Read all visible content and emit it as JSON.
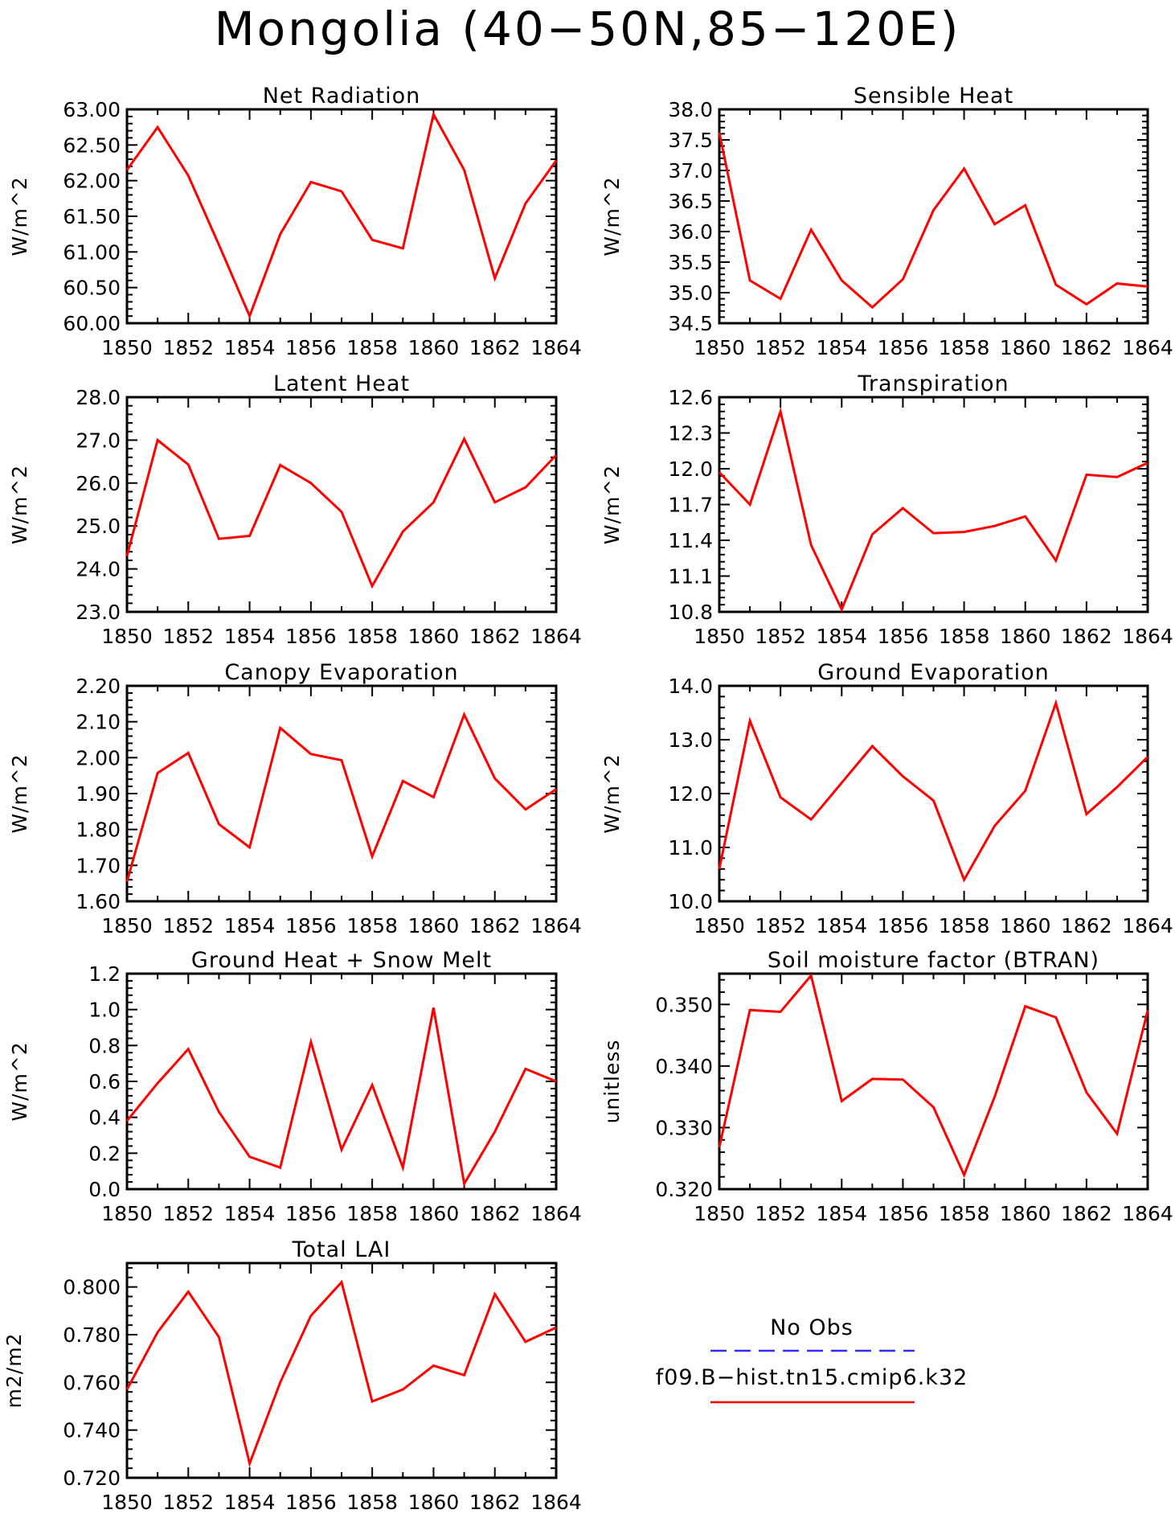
{
  "figure_title": "Mongolia (40−50N,85−120E)",
  "colors": {
    "model_line": "#ff0000",
    "obs_line": "#2d2dff",
    "axis": "#000000"
  },
  "legend": {
    "items": [
      {
        "label": "No Obs",
        "color": "#2d2dff",
        "style": "dashed"
      },
      {
        "label": "f09.B−hist.tn15.cmip6.k32",
        "color": "#ff0000",
        "style": "solid"
      }
    ]
  },
  "chart_data": [
    {
      "type": "line",
      "title": "Net Radiation",
      "ylabel": "W/m^2",
      "xlim": [
        1850,
        1864
      ],
      "ylim": [
        60.0,
        63.0
      ],
      "yticks": [
        "60.00",
        "60.50",
        "61.00",
        "61.50",
        "62.00",
        "62.50",
        "63.00"
      ],
      "xticks": [
        "1850",
        "1852",
        "1854",
        "1856",
        "1858",
        "1860",
        "1862",
        "1864"
      ],
      "x": [
        1850,
        1851,
        1852,
        1853,
        1854,
        1855,
        1856,
        1857,
        1858,
        1859,
        1860,
        1861,
        1862,
        1863,
        1864
      ],
      "series": [
        {
          "name": "f09.B−hist.tn15.cmip6.k32",
          "values": [
            62.15,
            62.75,
            62.07,
            61.1,
            60.1,
            61.25,
            61.98,
            61.85,
            61.17,
            61.05,
            62.93,
            62.15,
            60.63,
            61.68,
            62.28
          ]
        }
      ]
    },
    {
      "type": "line",
      "title": "Sensible Heat",
      "ylabel": "W/m^2",
      "xlim": [
        1850,
        1864
      ],
      "ylim": [
        34.5,
        38.0
      ],
      "yticks": [
        "34.5",
        "35.0",
        "35.5",
        "36.0",
        "36.5",
        "37.0",
        "37.5",
        "38.0"
      ],
      "xticks": [
        "1850",
        "1852",
        "1854",
        "1856",
        "1858",
        "1860",
        "1862",
        "1864"
      ],
      "x": [
        1850,
        1851,
        1852,
        1853,
        1854,
        1855,
        1856,
        1857,
        1858,
        1859,
        1860,
        1861,
        1862,
        1863,
        1864
      ],
      "series": [
        {
          "name": "f09.B−hist.tn15.cmip6.k32",
          "values": [
            37.62,
            35.2,
            34.9,
            36.03,
            35.2,
            34.76,
            35.22,
            36.35,
            37.03,
            36.12,
            36.43,
            35.13,
            34.81,
            35.15,
            35.1
          ]
        }
      ]
    },
    {
      "type": "line",
      "title": "Latent Heat",
      "ylabel": "W/m^2",
      "xlim": [
        1850,
        1864
      ],
      "ylim": [
        23.0,
        28.0
      ],
      "yticks": [
        "23.0",
        "24.0",
        "25.0",
        "26.0",
        "27.0",
        "28.0"
      ],
      "xticks": [
        "1850",
        "1852",
        "1854",
        "1856",
        "1858",
        "1860",
        "1862",
        "1864"
      ],
      "x": [
        1850,
        1851,
        1852,
        1853,
        1854,
        1855,
        1856,
        1857,
        1858,
        1859,
        1860,
        1861,
        1862,
        1863,
        1864
      ],
      "series": [
        {
          "name": "f09.B−hist.tn15.cmip6.k32",
          "values": [
            24.3,
            27.0,
            26.43,
            24.7,
            24.77,
            26.42,
            26.0,
            25.33,
            23.6,
            24.87,
            25.55,
            27.03,
            25.55,
            25.9,
            26.65
          ]
        }
      ]
    },
    {
      "type": "line",
      "title": "Transpiration",
      "ylabel": "W/m^2",
      "xlim": [
        1850,
        1864
      ],
      "ylim": [
        10.8,
        12.6
      ],
      "yticks": [
        "10.8",
        "11.1",
        "11.4",
        "11.7",
        "12.0",
        "12.3",
        "12.6"
      ],
      "xticks": [
        "1850",
        "1852",
        "1854",
        "1856",
        "1858",
        "1860",
        "1862",
        "1864"
      ],
      "x": [
        1850,
        1851,
        1852,
        1853,
        1854,
        1855,
        1856,
        1857,
        1858,
        1859,
        1860,
        1861,
        1862,
        1863,
        1864
      ],
      "series": [
        {
          "name": "f09.B−hist.tn15.cmip6.k32",
          "values": [
            11.97,
            11.7,
            12.48,
            11.36,
            10.82,
            11.45,
            11.67,
            11.46,
            11.47,
            11.52,
            11.6,
            11.23,
            11.95,
            11.93,
            12.05
          ]
        }
      ]
    },
    {
      "type": "line",
      "title": "Canopy Evaporation",
      "ylabel": "W/m^2",
      "xlim": [
        1850,
        1864
      ],
      "ylim": [
        1.6,
        2.2
      ],
      "yticks": [
        "1.60",
        "1.70",
        "1.80",
        "1.90",
        "2.00",
        "2.10",
        "2.20"
      ],
      "xticks": [
        "1850",
        "1852",
        "1854",
        "1856",
        "1858",
        "1860",
        "1862",
        "1864"
      ],
      "x": [
        1850,
        1851,
        1852,
        1853,
        1854,
        1855,
        1856,
        1857,
        1858,
        1859,
        1860,
        1861,
        1862,
        1863,
        1864
      ],
      "series": [
        {
          "name": "f09.B−hist.tn15.cmip6.k32",
          "values": [
            1.655,
            1.957,
            2.013,
            1.815,
            1.75,
            2.083,
            2.01,
            1.993,
            1.725,
            1.935,
            1.89,
            2.12,
            1.942,
            1.856,
            1.912
          ]
        }
      ]
    },
    {
      "type": "line",
      "title": "Ground Evaporation",
      "ylabel": "W/m^2",
      "xlim": [
        1850,
        1864
      ],
      "ylim": [
        10.0,
        14.0
      ],
      "yticks": [
        "10.0",
        "11.0",
        "12.0",
        "13.0",
        "14.0"
      ],
      "xticks": [
        "1850",
        "1852",
        "1854",
        "1856",
        "1858",
        "1860",
        "1862",
        "1864"
      ],
      "x": [
        1850,
        1851,
        1852,
        1853,
        1854,
        1855,
        1856,
        1857,
        1858,
        1859,
        1860,
        1861,
        1862,
        1863,
        1864
      ],
      "series": [
        {
          "name": "f09.B−hist.tn15.cmip6.k32",
          "values": [
            10.6,
            13.35,
            11.93,
            11.52,
            12.2,
            12.88,
            12.32,
            11.87,
            10.4,
            11.4,
            12.05,
            13.68,
            11.62,
            12.12,
            12.68
          ]
        }
      ]
    },
    {
      "type": "line",
      "title": "Ground Heat + Snow Melt",
      "ylabel": "W/m^2",
      "xlim": [
        1850,
        1864
      ],
      "ylim": [
        0.0,
        1.2
      ],
      "yticks": [
        "0.0",
        "0.2",
        "0.4",
        "0.6",
        "0.8",
        "1.0",
        "1.2"
      ],
      "xticks": [
        "1850",
        "1852",
        "1854",
        "1856",
        "1858",
        "1860",
        "1862",
        "1864"
      ],
      "x": [
        1850,
        1851,
        1852,
        1853,
        1854,
        1855,
        1856,
        1857,
        1858,
        1859,
        1860,
        1861,
        1862,
        1863,
        1864
      ],
      "series": [
        {
          "name": "f09.B−hist.tn15.cmip6.k32",
          "values": [
            0.38,
            0.59,
            0.78,
            0.43,
            0.18,
            0.12,
            0.82,
            0.22,
            0.58,
            0.12,
            1.01,
            0.03,
            0.32,
            0.67,
            0.6
          ]
        }
      ]
    },
    {
      "type": "line",
      "title": "Soil moisture factor (BTRAN)",
      "ylabel": "unitless",
      "xlim": [
        1850,
        1864
      ],
      "ylim": [
        0.32,
        0.355
      ],
      "yticks": [
        "0.320",
        "0.330",
        "0.340",
        "0.350"
      ],
      "xticks": [
        "1850",
        "1852",
        "1854",
        "1856",
        "1858",
        "1860",
        "1862",
        "1864"
      ],
      "x": [
        1850,
        1851,
        1852,
        1853,
        1854,
        1855,
        1856,
        1857,
        1858,
        1859,
        1860,
        1861,
        1862,
        1863,
        1864
      ],
      "series": [
        {
          "name": "f09.B−hist.tn15.cmip6.k32",
          "values": [
            0.3268,
            0.3491,
            0.3488,
            0.3547,
            0.3343,
            0.3379,
            0.3378,
            0.3333,
            0.3223,
            0.335,
            0.3497,
            0.3479,
            0.3357,
            0.329,
            0.349
          ]
        }
      ]
    },
    {
      "type": "line",
      "title": "Total LAI",
      "ylabel": "m2/m2",
      "xlim": [
        1850,
        1864
      ],
      "ylim": [
        0.72,
        0.81
      ],
      "yticks": [
        "0.720",
        "0.740",
        "0.760",
        "0.780",
        "0.800"
      ],
      "xticks": [
        "1850",
        "1852",
        "1854",
        "1856",
        "1858",
        "1860",
        "1862",
        "1864"
      ],
      "x": [
        1850,
        1851,
        1852,
        1853,
        1854,
        1855,
        1856,
        1857,
        1858,
        1859,
        1860,
        1861,
        1862,
        1863,
        1864
      ],
      "series": [
        {
          "name": "f09.B−hist.tn15.cmip6.k32",
          "values": [
            0.757,
            0.781,
            0.798,
            0.779,
            0.726,
            0.76,
            0.788,
            0.802,
            0.752,
            0.757,
            0.767,
            0.763,
            0.797,
            0.777,
            0.783
          ]
        }
      ]
    }
  ]
}
